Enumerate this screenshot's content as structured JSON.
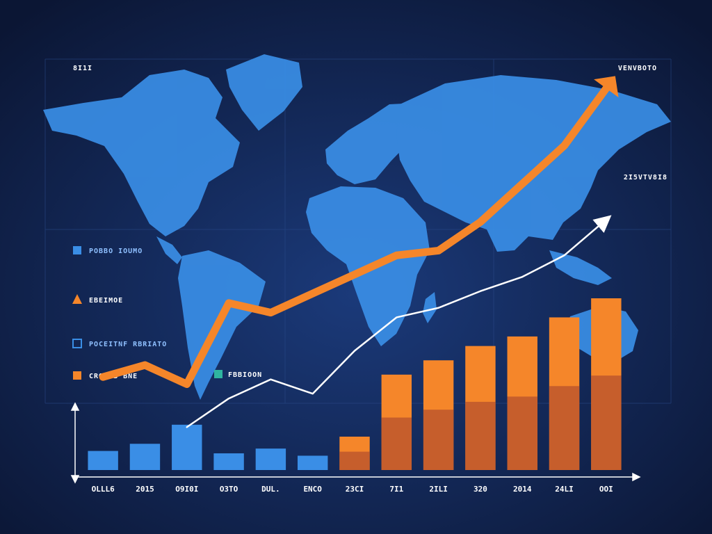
{
  "colors": {
    "background": "#0d1a3a",
    "map": "#3a8ee6",
    "blue_bar": "#3a8ee6",
    "orange": "#f5862a",
    "orange_dark": "#b5502e",
    "white_line": "#ffffff",
    "teal_marker": "#2fb5a0"
  },
  "corner_labels": {
    "top_left": "8I1I",
    "top_right": "VENVBOTO",
    "right_mid": "2I5VTV8I8"
  },
  "legend": [
    {
      "marker": "square",
      "color": "#3a8ee6",
      "label": "POBBO IOUMO"
    },
    {
      "marker": "triangle",
      "color": "#f5862a",
      "label": "EBEIMOE"
    },
    {
      "marker": "square-outline",
      "color": "#3a8ee6",
      "label": "POCEITNF RBRIATO"
    },
    {
      "marker": "square",
      "color": "#f5862a",
      "label": "CROOLB BNE"
    },
    {
      "marker": "square",
      "color": "#2fb5a0",
      "label": "FBBIOON"
    }
  ],
  "chart_data": {
    "type": "bar",
    "categories": [
      "OLLL6",
      "2015",
      "O9I0I",
      "O3TO",
      "DUL.",
      "ENCO",
      "23CI",
      "7I1",
      "2ILI",
      "320",
      "2014",
      "24LI",
      "OOI"
    ],
    "series": [
      {
        "type": "bar",
        "color": "#3a8ee6",
        "values": [
          8,
          11,
          19,
          7,
          9,
          6,
          0,
          0,
          0,
          0,
          0,
          0,
          0
        ]
      },
      {
        "type": "bar",
        "color": "#f5862a",
        "values": [
          0,
          0,
          0,
          0,
          0,
          0,
          14,
          40,
          46,
          52,
          56,
          64,
          72
        ]
      },
      {
        "type": "line",
        "color": "#ffffff",
        "values": [
          null,
          null,
          18,
          30,
          38,
          32,
          50,
          64,
          68,
          75,
          81,
          90,
          105
        ]
      },
      {
        "type": "line",
        "color": "#f5862a",
        "values": [
          39,
          44,
          36,
          70,
          66,
          74,
          82,
          90,
          92,
          104,
          120,
          136,
          160
        ]
      }
    ],
    "ylim": [
      0,
      165
    ],
    "grid": true
  }
}
